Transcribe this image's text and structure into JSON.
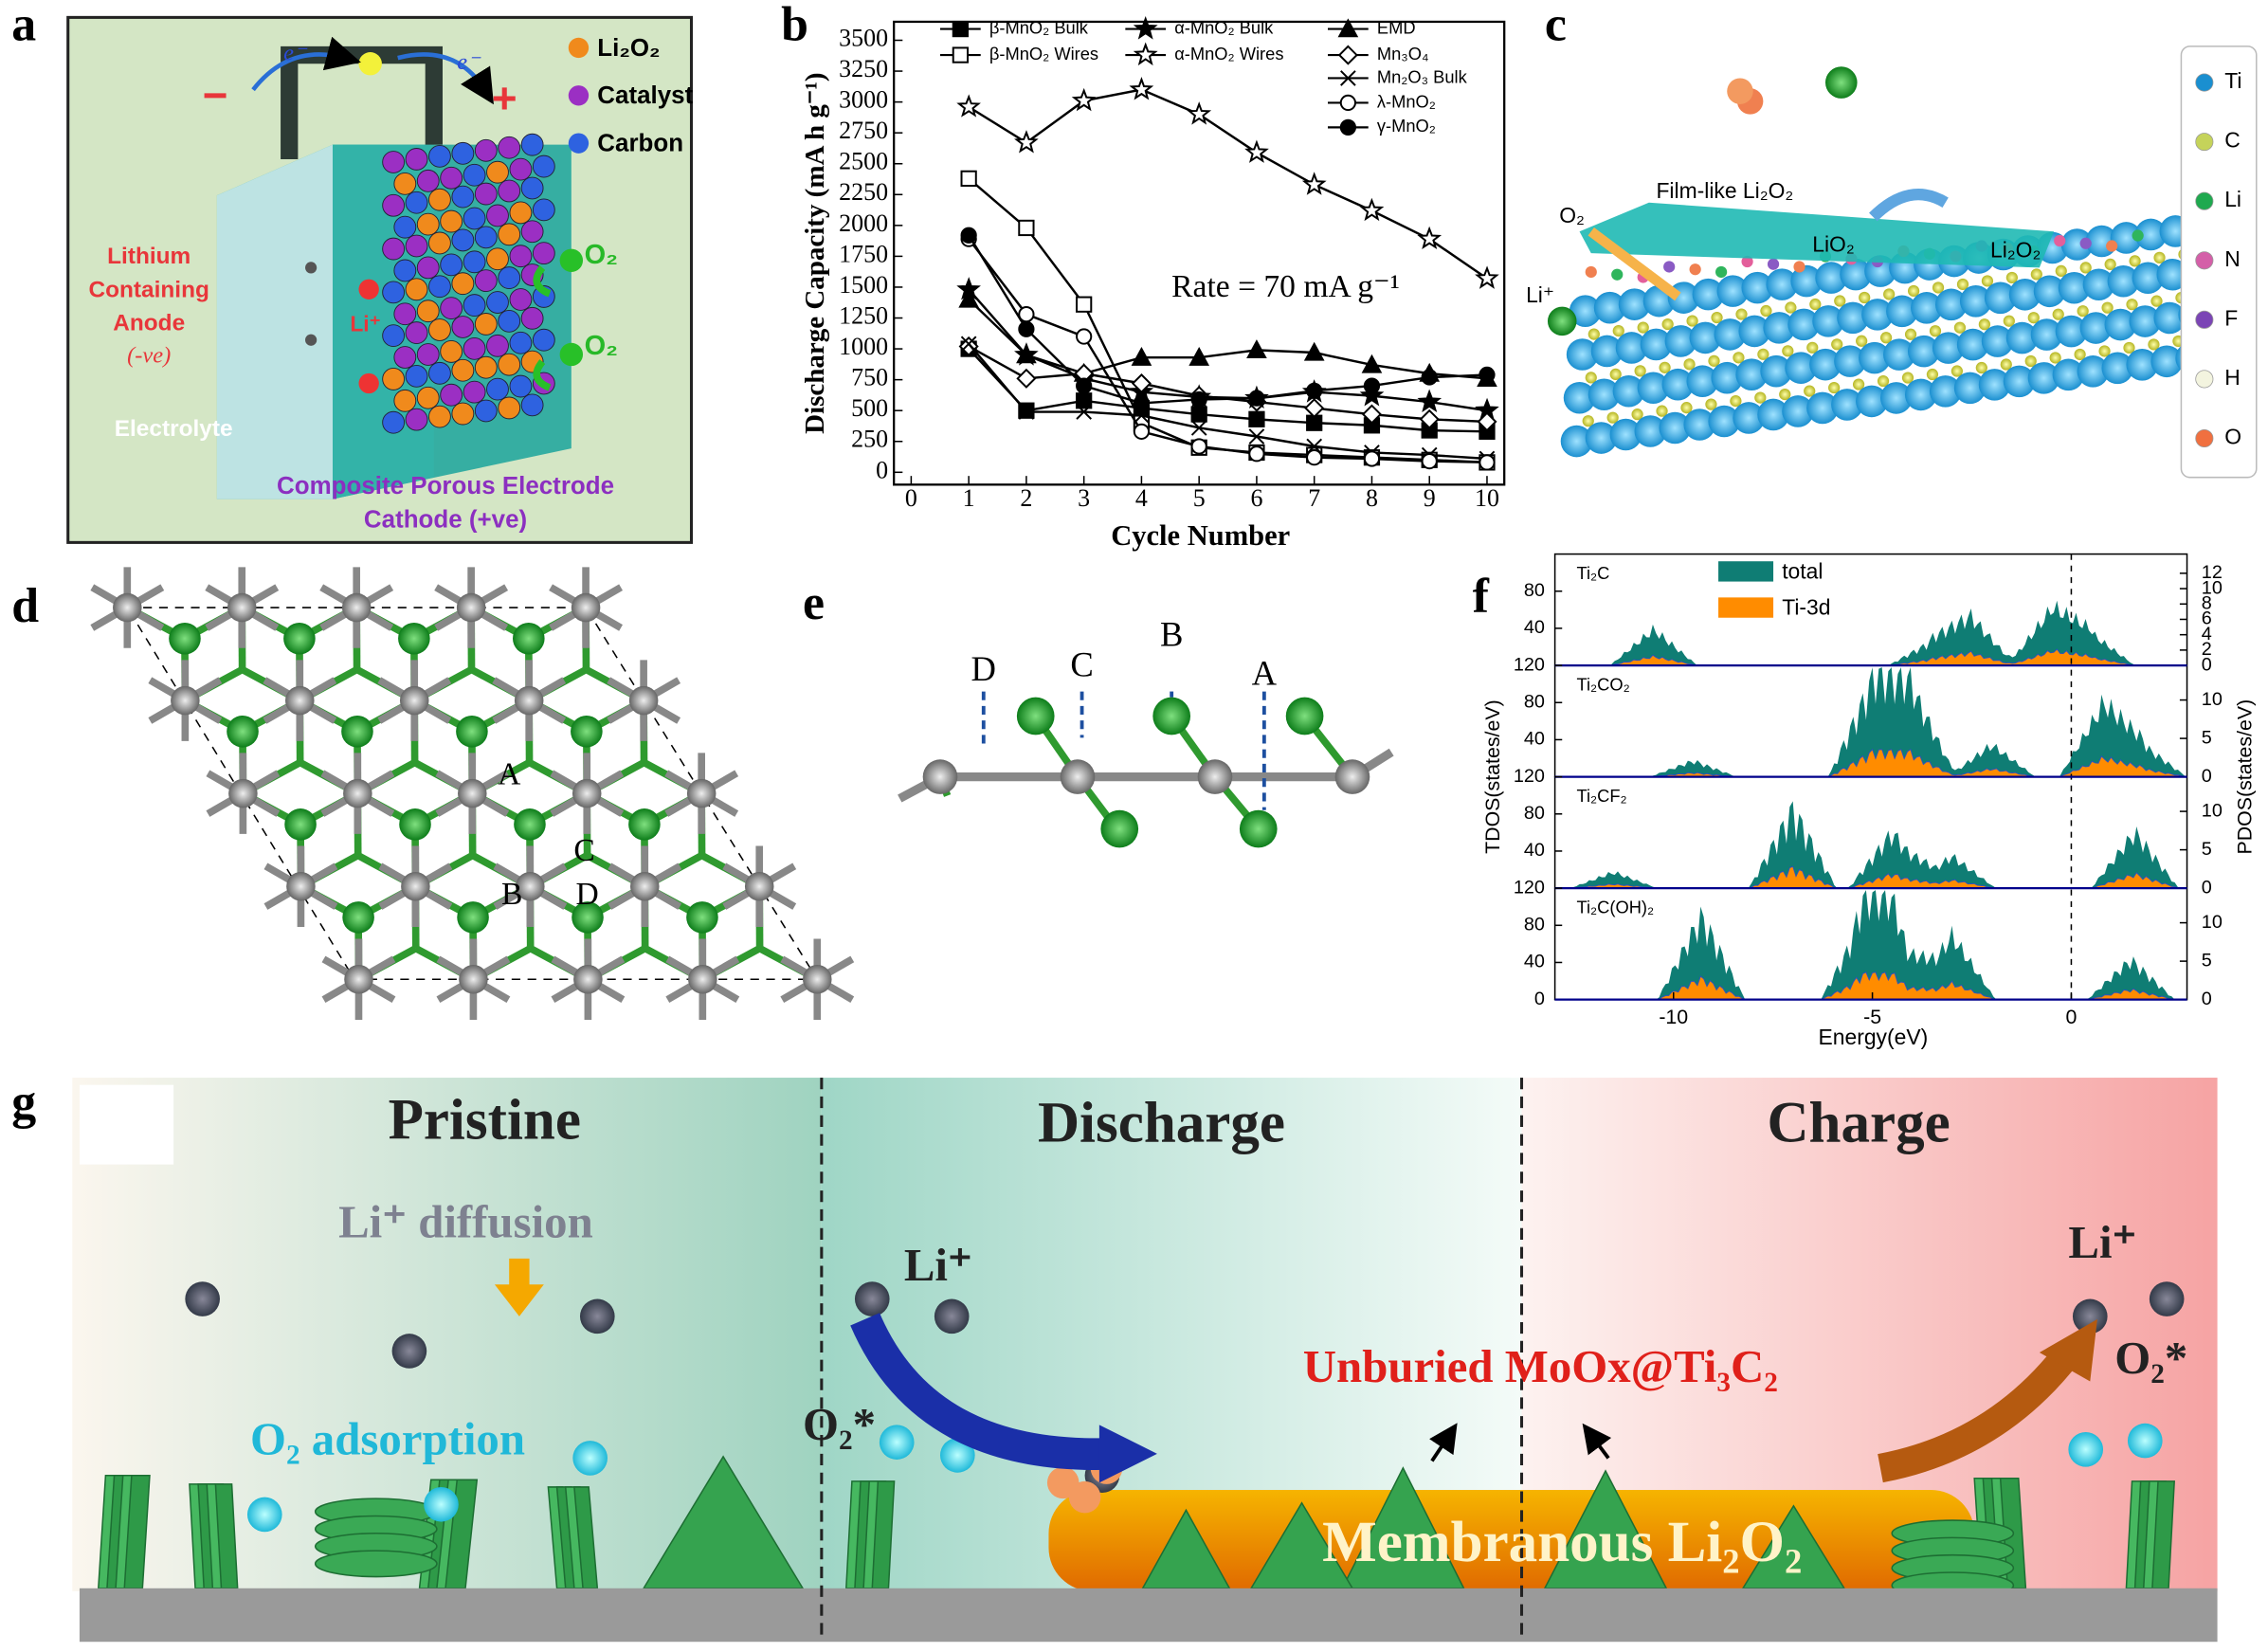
{
  "panel_labels": [
    "a",
    "b",
    "c",
    "d",
    "e",
    "f",
    "g"
  ],
  "chart_data": {
    "type": "line",
    "xlabel": "Cycle Number",
    "ylabel": "Discharge Capacity (mA h g⁻¹)",
    "annotation": "Rate = 70 mA g⁻¹",
    "x": [
      1,
      2,
      3,
      4,
      5,
      6,
      7,
      8,
      9,
      10
    ],
    "xlim": [
      -0.3,
      10.3
    ],
    "xticks": [
      0,
      1,
      2,
      3,
      4,
      5,
      6,
      7,
      8,
      9,
      10
    ],
    "ylim": [
      -100,
      3650
    ],
    "yticks": [
      0,
      250,
      500,
      750,
      1000,
      1250,
      1500,
      1750,
      2000,
      2250,
      2500,
      2750,
      3000,
      3250,
      3500
    ],
    "series": [
      {
        "name": "β-MnO₂ Bulk",
        "color": "#000",
        "marker": "square",
        "values": [
          1000,
          500,
          580,
          520,
          470,
          430,
          400,
          380,
          340,
          330
        ]
      },
      {
        "name": "β-MnO₂ Wires",
        "color": "#000",
        "marker": "square-open",
        "values": [
          2380,
          1980,
          1360,
          400,
          200,
          160,
          140,
          120,
          100,
          80
        ]
      },
      {
        "name": "α-MnO₂ Bulk",
        "color": "#000",
        "marker": "star",
        "values": [
          1480,
          950,
          760,
          650,
          610,
          600,
          650,
          620,
          570,
          500
        ]
      },
      {
        "name": "α-MnO₂ Wires",
        "color": "#000",
        "marker": "star-open",
        "values": [
          2960,
          2670,
          3010,
          3100,
          2900,
          2590,
          2330,
          2120,
          1890,
          1570
        ]
      },
      {
        "name": "EMD",
        "color": "#000",
        "marker": "triangle",
        "values": [
          1400,
          950,
          800,
          930,
          930,
          990,
          970,
          870,
          800,
          760
        ]
      },
      {
        "name": "Mn₃O₄",
        "color": "#000",
        "marker": "diamond-open",
        "values": [
          1020,
          760,
          800,
          720,
          620,
          570,
          520,
          470,
          430,
          410
        ]
      },
      {
        "name": "Mn₂O₃ Bulk",
        "color": "#000",
        "marker": "cross",
        "values": [
          1040,
          490,
          490,
          460,
          360,
          290,
          210,
          160,
          140,
          110
        ]
      },
      {
        "name": "λ-MnO₂",
        "color": "#000",
        "marker": "circle-open",
        "values": [
          1890,
          1280,
          1100,
          330,
          210,
          150,
          120,
          110,
          90,
          80
        ]
      },
      {
        "name": "γ-MnO₂",
        "color": "#000",
        "marker": "circle",
        "values": [
          1920,
          1160,
          700,
          560,
          590,
          600,
          660,
          700,
          770,
          790
        ]
      }
    ]
  },
  "panel_a": {
    "legend": [
      "Li₂O₂",
      "Catalyst",
      "Carbon"
    ],
    "anode": [
      "Lithium",
      "Containing",
      "Anode",
      "(-ve)"
    ],
    "electrolyte": "Electrolyte",
    "cathode": [
      "Composite Porous Electrode",
      "Cathode (+ve)"
    ],
    "o2": [
      "O₂",
      "O₂"
    ],
    "li": "Li⁺",
    "electrons": [
      "e⁻",
      "e⁻"
    ],
    "minus": "−",
    "plus": "+"
  },
  "panel_c": {
    "legend": [
      "Ti",
      "C",
      "Li",
      "N",
      "F",
      "H",
      "O"
    ],
    "film": "Film-like Li₂O₂",
    "o2": "O₂",
    "lio2": "LiO₂",
    "li2o2": "Li₂O₂",
    "li": "Li⁺"
  },
  "panel_d": {
    "sites": [
      "A",
      "B",
      "C",
      "D"
    ]
  },
  "panel_e": {
    "sites": [
      "D",
      "C",
      "B",
      "A"
    ]
  },
  "panel_f": {
    "legend": [
      "total",
      "Ti-3d"
    ],
    "xlabel": "Energy(eV)",
    "ylabel_left": "TDOS(states/eV)",
    "ylabel_right": "PDOS(states/eV)",
    "xticks": [
      -10,
      -5,
      0
    ],
    "subpanels": [
      {
        "name": "Ti₂C",
        "tdos_ticks": [
          40,
          80
        ],
        "pdos_ticks": [
          0,
          2,
          4,
          6,
          8,
          10,
          12
        ]
      },
      {
        "name": "Ti₂CO₂",
        "tdos_ticks": [
          40,
          80,
          120
        ],
        "pdos_ticks": [
          0,
          5,
          10
        ]
      },
      {
        "name": "Ti₂CF₂",
        "tdos_ticks": [
          40,
          80,
          120
        ],
        "pdos_ticks": [
          0,
          5,
          10
        ]
      },
      {
        "name": "Ti₂C(OH)₂",
        "tdos_ticks": [
          0,
          40,
          80,
          120
        ],
        "pdos_ticks": [
          0,
          5,
          10
        ]
      }
    ]
  },
  "panel_g": {
    "stages": [
      "Pristine",
      "Discharge",
      "Charge"
    ],
    "diffusion": "Li⁺  diffusion",
    "adsorption": "O₂ adsorption",
    "li_discharge": "Li⁺",
    "o2_discharge": "O₂*",
    "unburied": "Unburied MoOx@Ti₃C₂",
    "membranous": "Membranous Li₂O₂",
    "li_charge": "Li⁺",
    "o2_charge": "O₂*"
  }
}
